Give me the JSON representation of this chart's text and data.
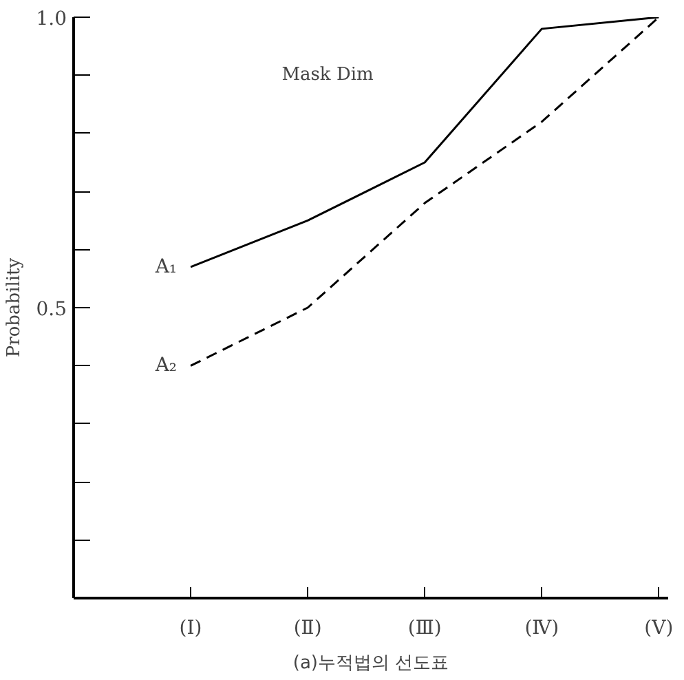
{
  "chart_data": {
    "type": "line",
    "title": "(a)누적법의 선도표",
    "ylabel": "Probability",
    "annotations": [
      "Mask Dim"
    ],
    "categories": [
      "(Ⅰ)",
      "(Ⅱ)",
      "(Ⅲ)",
      "(Ⅳ)",
      "(Ⅴ)"
    ],
    "series": [
      {
        "name": "A₁",
        "color": "#000000",
        "line_style": "solid",
        "values": [
          0.57,
          0.65,
          0.75,
          0.98,
          1.0
        ]
      },
      {
        "name": "A₂",
        "color": "#000000",
        "line_style": "dashed",
        "values": [
          0.4,
          0.5,
          0.68,
          0.82,
          1.0
        ]
      }
    ],
    "ylim": [
      0,
      1.0
    ],
    "yticks": [
      {
        "value": 0.1,
        "label": null
      },
      {
        "value": 0.2,
        "label": null
      },
      {
        "value": 0.3,
        "label": null
      },
      {
        "value": 0.4,
        "label": null
      },
      0.5,
      {
        "value": 0.6,
        "label": null
      },
      {
        "value": 0.7,
        "label": null
      },
      {
        "value": 0.8,
        "label": null
      },
      {
        "value": 0.9,
        "label": null
      },
      {
        "value": 1.0,
        "label": "1.0"
      }
    ],
    "grid": false,
    "legend": false,
    "marker": "none"
  }
}
